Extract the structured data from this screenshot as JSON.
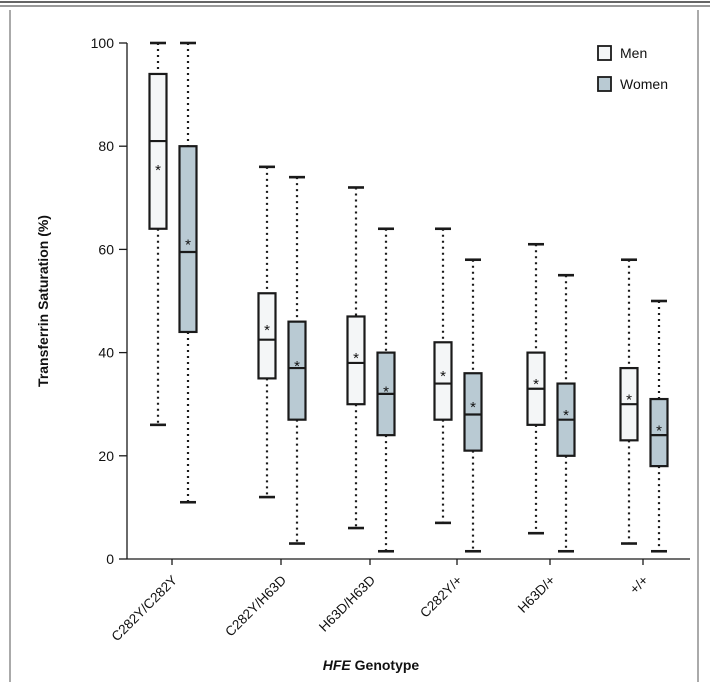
{
  "colors": {
    "men_fill": "#f4f6f7",
    "women_fill": "#b9cad3",
    "stroke": "#1a1a1a",
    "frame": "#333333"
  },
  "chart_data": {
    "type": "boxplot",
    "title": "",
    "xlabel_italic": "HFE",
    "xlabel_rest": " Genotype",
    "ylabel": "Transferrin Saturation (%)",
    "ylim": [
      0,
      100
    ],
    "yticks": [
      0,
      20,
      40,
      60,
      80,
      100
    ],
    "grid": false,
    "legend_position": "top-right",
    "categories": [
      "C282Y/C282Y",
      "C282Y/H63D",
      "H63D/H63D",
      "C282Y/+",
      "H63D/+",
      "+/+"
    ],
    "mean_marker": "*",
    "series": [
      {
        "name": "Men",
        "boxes": [
          {
            "min": 26,
            "q1": 64,
            "median": 81,
            "q3": 94,
            "max": 100,
            "mean": 76
          },
          {
            "min": 12,
            "q1": 35,
            "median": 42.5,
            "q3": 51.5,
            "max": 76,
            "mean": 45
          },
          {
            "min": 6,
            "q1": 30,
            "median": 38,
            "q3": 47,
            "max": 72,
            "mean": 39.5
          },
          {
            "min": 7,
            "q1": 27,
            "median": 34,
            "q3": 42,
            "max": 64,
            "mean": 36
          },
          {
            "min": 5,
            "q1": 26,
            "median": 33,
            "q3": 40,
            "max": 61,
            "mean": 34.5
          },
          {
            "min": 3,
            "q1": 23,
            "median": 30,
            "q3": 37,
            "max": 58,
            "mean": 31.5
          }
        ]
      },
      {
        "name": "Women",
        "boxes": [
          {
            "min": 11,
            "q1": 44,
            "median": 59.5,
            "q3": 80,
            "max": 100,
            "mean": 61.5
          },
          {
            "min": 3,
            "q1": 27,
            "median": 37,
            "q3": 46,
            "max": 74,
            "mean": 38
          },
          {
            "min": 1.5,
            "q1": 24,
            "median": 32,
            "q3": 40,
            "max": 64,
            "mean": 33
          },
          {
            "min": 1.5,
            "q1": 21,
            "median": 28,
            "q3": 36,
            "max": 58,
            "mean": 30
          },
          {
            "min": 1.5,
            "q1": 20,
            "median": 27,
            "q3": 34,
            "max": 55,
            "mean": 28.5
          },
          {
            "min": 1.5,
            "q1": 18,
            "median": 24,
            "q3": 31,
            "max": 50,
            "mean": 25.5
          }
        ]
      }
    ]
  }
}
